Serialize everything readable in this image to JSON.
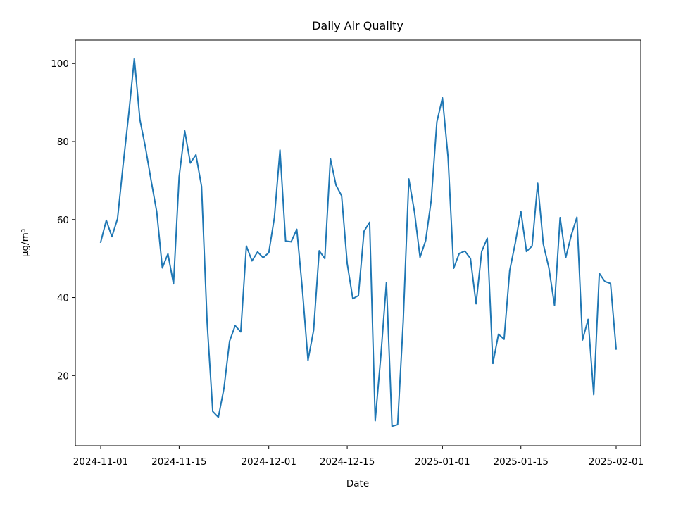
{
  "chart_data": {
    "type": "line",
    "title": "Daily Air Quality",
    "xlabel": "Date",
    "ylabel": "µg/m³",
    "x_start": "2024-11-01",
    "x_end": "2025-02-01",
    "x_ticks": [
      {
        "date": "2024-11-01",
        "label": "2024-11-01"
      },
      {
        "date": "2024-11-15",
        "label": "2024-11-15"
      },
      {
        "date": "2024-12-01",
        "label": "2024-12-01"
      },
      {
        "date": "2024-12-15",
        "label": "2024-12-15"
      },
      {
        "date": "2025-01-01",
        "label": "2025-01-01"
      },
      {
        "date": "2025-01-15",
        "label": "2025-01-15"
      },
      {
        "date": "2025-02-01",
        "label": "2025-02-01"
      }
    ],
    "y_ticks": [
      20,
      40,
      60,
      80,
      100
    ],
    "ylim": [
      2,
      106
    ],
    "grid": false,
    "series": [
      {
        "color": "#1f77b4",
        "x": [
          "2024-11-01",
          "2024-11-02",
          "2024-11-03",
          "2024-11-04",
          "2024-11-05",
          "2024-11-06",
          "2024-11-07",
          "2024-11-08",
          "2024-11-09",
          "2024-11-10",
          "2024-11-11",
          "2024-11-12",
          "2024-11-13",
          "2024-11-14",
          "2024-11-15",
          "2024-11-16",
          "2024-11-17",
          "2024-11-18",
          "2024-11-19",
          "2024-11-20",
          "2024-11-21",
          "2024-11-22",
          "2024-11-23",
          "2024-11-24",
          "2024-11-25",
          "2024-11-26",
          "2024-11-27",
          "2024-11-28",
          "2024-11-29",
          "2024-11-30",
          "2024-12-01",
          "2024-12-02",
          "2024-12-03",
          "2024-12-04",
          "2024-12-05",
          "2024-12-06",
          "2024-12-07",
          "2024-12-08",
          "2024-12-09",
          "2024-12-10",
          "2024-12-11",
          "2024-12-12",
          "2024-12-13",
          "2024-12-14",
          "2024-12-15",
          "2024-12-16",
          "2024-12-17",
          "2024-12-18",
          "2024-12-19",
          "2024-12-20",
          "2024-12-21",
          "2024-12-22",
          "2024-12-23",
          "2024-12-24",
          "2024-12-25",
          "2024-12-26",
          "2024-12-27",
          "2024-12-28",
          "2024-12-29",
          "2024-12-30",
          "2024-12-31",
          "2025-01-01",
          "2025-01-02",
          "2025-01-03",
          "2025-01-04",
          "2025-01-05",
          "2025-01-06",
          "2025-01-07",
          "2025-01-08",
          "2025-01-09",
          "2025-01-10",
          "2025-01-11",
          "2025-01-12",
          "2025-01-13",
          "2025-01-14",
          "2025-01-15",
          "2025-01-16",
          "2025-01-17",
          "2025-01-18",
          "2025-01-19",
          "2025-01-20",
          "2025-01-21",
          "2025-01-22",
          "2025-01-23",
          "2025-01-24",
          "2025-01-25",
          "2025-01-26",
          "2025-01-27",
          "2025-01-28",
          "2025-01-29",
          "2025-01-30",
          "2025-01-31",
          "2025-02-01"
        ],
        "values": [
          54.2,
          59.8,
          55.6,
          60.2,
          74.0,
          87.0,
          101.3,
          85.6,
          78.4,
          70.0,
          62.0,
          47.6,
          51.2,
          43.5,
          71.0,
          82.7,
          74.5,
          76.6,
          68.5,
          33.5,
          10.8,
          9.3,
          16.7,
          28.8,
          32.8,
          31.2,
          53.2,
          49.4,
          51.7,
          50.2,
          51.5,
          60.5,
          77.8,
          54.5,
          54.3,
          57.5,
          42.0,
          23.9,
          31.6,
          52.0,
          50.0,
          75.6,
          68.8,
          66.1,
          48.7,
          39.7,
          40.5,
          57.0,
          59.3,
          8.4,
          25.0,
          43.9,
          7.0,
          7.4,
          34.0,
          70.4,
          62.0,
          50.3,
          54.6,
          65.0,
          85.0,
          91.2,
          76.0,
          47.5,
          51.3,
          51.9,
          50.0,
          38.4,
          51.8,
          55.2,
          23.1,
          30.6,
          29.3,
          46.9,
          54.0,
          62.1,
          51.8,
          53.2,
          69.3,
          53.7,
          47.6,
          38.0,
          60.5,
          50.2,
          56.0,
          60.6,
          29.1,
          34.4,
          15.1,
          46.2,
          44.1,
          43.6,
          26.8
        ]
      }
    ]
  }
}
